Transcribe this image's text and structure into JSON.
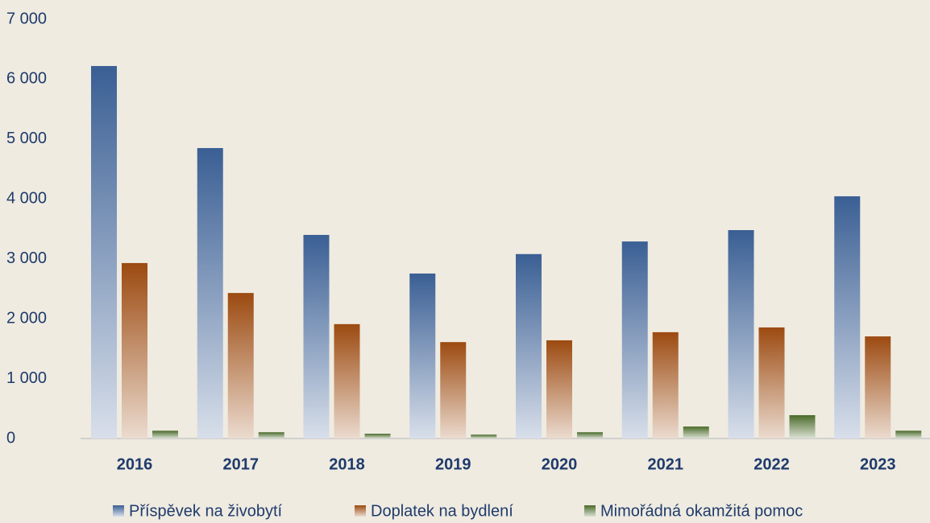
{
  "chart_data": {
    "type": "bar",
    "categories": [
      "2016",
      "2017",
      "2018",
      "2019",
      "2020",
      "2021",
      "2022",
      "2023"
    ],
    "series": [
      {
        "name": "Příspěvek na živobytí",
        "color": "#3a5f94",
        "values": [
          6220,
          4850,
          3400,
          2755,
          3080,
          3290,
          3480,
          4045
        ]
      },
      {
        "name": "Doplatek na bydlení",
        "color": "#9c4a10",
        "values": [
          2930,
          2430,
          1910,
          1610,
          1640,
          1775,
          1855,
          1705
        ]
      },
      {
        "name": "Mimořádná okamžitá pomoc",
        "color": "#4a6b2a",
        "values": [
          130,
          105,
          80,
          65,
          105,
          200,
          390,
          130
        ]
      }
    ],
    "ylim": [
      0,
      7000
    ],
    "yticks": [
      0,
      {
        "value": 1000,
        "label": "1 000"
      },
      {
        "value": 2000,
        "label": "2 000"
      },
      {
        "value": 3000,
        "label": "3 000"
      },
      {
        "value": 4000,
        "label": "4 000"
      },
      {
        "value": 5000,
        "label": "5 000"
      },
      {
        "value": 6000,
        "label": "6 000"
      },
      {
        "value": 7000,
        "label": "7 000"
      }
    ],
    "grid": false,
    "legend": "bottom"
  }
}
